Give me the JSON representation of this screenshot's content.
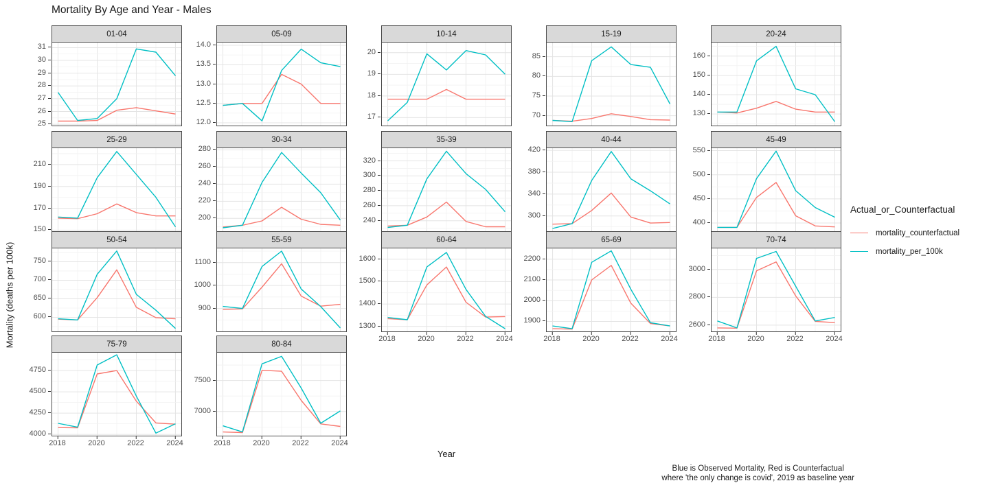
{
  "page": {
    "title": "Mortality By Age and Year - Males"
  },
  "chart_data": {
    "type": "line",
    "title": "Mortality By Age and Year - Males",
    "xlabel": "Year",
    "ylabel": "Mortality (deaths per 100k)",
    "caption_line1": "Blue is Observed Mortality, Red is Counterfactual",
    "caption_line2": "where 'the only change is covid', 2019 as baseline year",
    "grid": true,
    "legend": {
      "position": "right",
      "title": "Actual_or_Counterfactual",
      "entries": [
        {
          "label": "mortality_counterfactual",
          "color": "#F8766D"
        },
        {
          "label": "mortality_per_100k",
          "color": "#00BFC4"
        }
      ]
    },
    "colors": {
      "mortality_counterfactual": "#F8766D",
      "mortality_per_100k": "#00BFC4"
    },
    "facet_columns": 5,
    "x": [
      2018,
      2019,
      2020,
      2021,
      2022,
      2023,
      2024
    ],
    "x_ticks": [
      2018,
      2020,
      2022,
      2024
    ],
    "x_minor_ticks": [
      2019,
      2021,
      2023
    ],
    "xlim": [
      2017.7,
      2024.3
    ],
    "facets": [
      {
        "label": "01-04",
        "y_ticks": [
          25,
          26,
          27,
          28,
          29,
          30,
          31
        ],
        "ylim": [
          24.9,
          31.4
        ],
        "mortality_counterfactual": [
          25.25,
          25.25,
          25.3,
          26.1,
          26.3,
          26.05,
          25.8
        ],
        "mortality_per_100k": [
          27.5,
          25.3,
          25.45,
          27.0,
          30.9,
          30.65,
          28.8
        ]
      },
      {
        "label": "05-09",
        "y_ticks": [
          12.0,
          12.5,
          13.0,
          13.5,
          14.0
        ],
        "ylim": [
          11.93,
          14.07
        ],
        "mortality_counterfactual": [
          12.45,
          12.5,
          12.5,
          13.25,
          13.0,
          12.5,
          12.5
        ],
        "mortality_per_100k": [
          12.45,
          12.5,
          12.05,
          13.35,
          13.9,
          13.55,
          13.45
        ]
      },
      {
        "label": "10-14",
        "y_ticks": [
          17,
          18,
          19,
          20
        ],
        "ylim": [
          16.63,
          20.47
        ],
        "mortality_counterfactual": [
          17.85,
          17.85,
          17.85,
          18.3,
          17.85,
          17.85,
          17.85
        ],
        "mortality_per_100k": [
          16.85,
          17.7,
          19.95,
          19.2,
          20.1,
          19.9,
          19.0
        ]
      },
      {
        "label": "15-19",
        "y_ticks": [
          70,
          75,
          80,
          85
        ],
        "ylim": [
          67.5,
          88.6
        ],
        "mortality_counterfactual": [
          68.8,
          68.6,
          69.3,
          70.5,
          69.8,
          69.0,
          68.9
        ],
        "mortality_per_100k": [
          68.8,
          68.5,
          84.0,
          87.5,
          83.0,
          82.3,
          73.0
        ]
      },
      {
        "label": "20-24",
        "y_ticks": [
          130,
          140,
          150,
          160
        ],
        "ylim": [
          124,
          167
        ],
        "mortality_counterfactual": [
          131,
          130.5,
          133,
          136.5,
          132.5,
          131,
          131
        ],
        "mortality_per_100k": [
          131,
          131,
          157.5,
          165,
          143,
          140,
          126
        ]
      },
      {
        "label": "25-29",
        "y_ticks": [
          150,
          170,
          190,
          210
        ],
        "ylim": [
          149,
          225
        ],
        "mortality_counterfactual": [
          161,
          160.5,
          165,
          174,
          166,
          163,
          163
        ],
        "mortality_per_100k": [
          162,
          161,
          198,
          222,
          201,
          180,
          153
        ]
      },
      {
        "label": "30-34",
        "y_ticks": [
          200,
          220,
          240,
          260,
          280
        ],
        "ylim": [
          185,
          282
        ],
        "mortality_counterfactual": [
          190,
          192,
          197,
          213,
          199,
          193,
          192
        ],
        "mortality_per_100k": [
          189,
          192,
          242,
          277,
          253,
          230,
          198
        ]
      },
      {
        "label": "35-39",
        "y_ticks": [
          240,
          260,
          280,
          300,
          320
        ],
        "ylim": [
          226,
          337
        ],
        "mortality_counterfactual": [
          233,
          234,
          245,
          265,
          239,
          232,
          232
        ],
        "mortality_per_100k": [
          231,
          234,
          296,
          333,
          303,
          282,
          252
        ]
      },
      {
        "label": "40-44",
        "y_ticks": [
          300,
          340,
          380,
          420
        ],
        "ylim": [
          272,
          424
        ],
        "mortality_counterfactual": [
          285,
          286,
          310,
          342,
          298,
          287,
          288
        ],
        "mortality_per_100k": [
          277,
          286,
          365,
          418,
          368,
          346,
          322
        ]
      },
      {
        "label": "45-49",
        "y_ticks": [
          400,
          450,
          500,
          550
        ],
        "ylim": [
          383,
          555
        ],
        "mortality_counterfactual": [
          391,
          391,
          453,
          484,
          415,
          394,
          392
        ],
        "mortality_per_100k": [
          391,
          391,
          492,
          549,
          467,
          432,
          412
        ]
      },
      {
        "label": "50-54",
        "y_ticks": [
          600,
          650,
          700,
          750
        ],
        "ylim": [
          562,
          786
        ],
        "mortality_counterfactual": [
          595,
          593,
          653,
          728,
          627,
          599,
          596
        ],
        "mortality_per_100k": [
          596,
          593,
          716,
          779,
          662,
          619,
          570
        ]
      },
      {
        "label": "55-59",
        "y_ticks": [
          900,
          1000,
          1100
        ],
        "ylim": [
          800,
          1162
        ],
        "mortality_counterfactual": [
          896,
          898,
          993,
          1095,
          954,
          910,
          918
        ],
        "mortality_per_100k": [
          909,
          900,
          1083,
          1150,
          985,
          908,
          815
        ]
      },
      {
        "label": "60-64",
        "y_ticks": [
          1300,
          1400,
          1500,
          1600
        ],
        "ylim": [
          1278,
          1648
        ],
        "mortality_counterfactual": [
          1335,
          1330,
          1485,
          1565,
          1408,
          1342,
          1344
        ],
        "mortality_per_100k": [
          1340,
          1330,
          1565,
          1630,
          1465,
          1345,
          1290
        ]
      },
      {
        "label": "65-69",
        "y_ticks": [
          1900,
          2000,
          2100,
          2200
        ],
        "ylim": [
          1852,
          2252
        ],
        "mortality_counterfactual": [
          1865,
          1863,
          2100,
          2170,
          1988,
          1890,
          1878
        ],
        "mortality_per_100k": [
          1878,
          1865,
          2185,
          2240,
          2055,
          1894,
          1878
        ]
      },
      {
        "label": "70-74",
        "y_ticks": [
          2600,
          2800,
          3000
        ],
        "ylim": [
          2555,
          3152
        ],
        "mortality_counterfactual": [
          2580,
          2578,
          2990,
          3055,
          2810,
          2627,
          2618
        ],
        "mortality_per_100k": [
          2630,
          2580,
          3080,
          3130,
          2880,
          2630,
          2655
        ]
      },
      {
        "label": "75-79",
        "y_ticks": [
          4000,
          4250,
          4500,
          4750
        ],
        "ylim": [
          3985,
          4960
        ],
        "mortality_counterfactual": [
          4080,
          4078,
          4710,
          4750,
          4390,
          4135,
          4120
        ],
        "mortality_per_100k": [
          4130,
          4085,
          4815,
          4935,
          4450,
          4015,
          4125
        ]
      },
      {
        "label": "80-84",
        "y_ticks": [
          7000,
          7500
        ],
        "ylim": [
          6610,
          7950
        ],
        "mortality_counterfactual": [
          6670,
          6660,
          7665,
          7650,
          7180,
          6800,
          6760
        ],
        "mortality_per_100k": [
          6770,
          6670,
          7770,
          7890,
          7380,
          6810,
          7010
        ]
      }
    ]
  }
}
